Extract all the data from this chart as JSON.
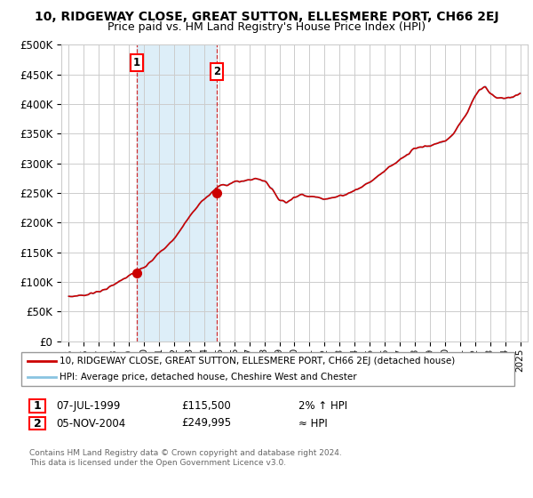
{
  "title": "10, RIDGEWAY CLOSE, GREAT SUTTON, ELLESMERE PORT, CH66 2EJ",
  "subtitle": "Price paid vs. HM Land Registry's House Price Index (HPI)",
  "legend_line1": "10, RIDGEWAY CLOSE, GREAT SUTTON, ELLESMERE PORT, CH66 2EJ (detached house)",
  "legend_line2": "HPI: Average price, detached house, Cheshire West and Chester",
  "annotation1_date": "07-JUL-1999",
  "annotation1_price": "£115,500",
  "annotation1_hpi": "2% ↑ HPI",
  "annotation2_date": "05-NOV-2004",
  "annotation2_price": "£249,995",
  "annotation2_hpi": "≈ HPI",
  "footer": "Contains HM Land Registry data © Crown copyright and database right 2024.\nThis data is licensed under the Open Government Licence v3.0.",
  "sale1_year": 1999.52,
  "sale1_value": 115500,
  "sale2_year": 2004.84,
  "sale2_value": 249995,
  "ylim_min": 0,
  "ylim_max": 500000,
  "ytick_step": 50000,
  "hpi_color": "#89c4e1",
  "price_color": "#cc0000",
  "shaded_color": "#ddeef8",
  "grid_color": "#cccccc",
  "bg_color": "#ffffff"
}
